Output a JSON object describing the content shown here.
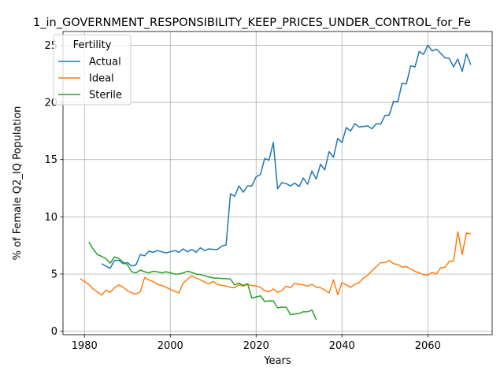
{
  "chart_data": {
    "type": "line",
    "title": "1_in_GOVERNMENT_RESPONSIBILITY_KEEP_PRICES_UNDER_CONTROL_for_Fe",
    "xlabel": "Years",
    "ylabel": "% of Female Q2_IQ Population",
    "xlim": [
      1975,
      2075
    ],
    "ylim": [
      -0.3,
      26.2
    ],
    "xticks": [
      1980,
      2000,
      2020,
      2040,
      2060
    ],
    "yticks": [
      0,
      5,
      10,
      15,
      20,
      25
    ],
    "grid": true,
    "legend": {
      "title": "Fertility",
      "placement": "top-left"
    },
    "series": [
      {
        "name": "Actual",
        "color": "#1f77b4",
        "x": [
          1984,
          1985,
          1986,
          1987,
          1988,
          1989,
          1990,
          1991,
          1992,
          1993,
          1994,
          1995,
          1996,
          1997,
          1998,
          1999,
          2000,
          2001,
          2002,
          2003,
          2004,
          2005,
          2006,
          2007,
          2008,
          2009,
          2010,
          2011,
          2012,
          2013,
          2014,
          2015,
          2016,
          2017,
          2018,
          2019,
          2020,
          2021,
          2022,
          2023,
          2024,
          2025,
          2026,
          2027,
          2028,
          2029,
          2030,
          2031,
          2032,
          2033,
          2034,
          2035,
          2036,
          2037,
          2038,
          2039,
          2040,
          2041,
          2042,
          2043,
          2044,
          2045,
          2046,
          2047,
          2048,
          2049,
          2050,
          2051,
          2052,
          2053,
          2054,
          2055,
          2056,
          2057,
          2058,
          2059,
          2060,
          2061,
          2062,
          2063,
          2064,
          2065,
          2066,
          2067,
          2068,
          2069,
          2070
        ],
        "values": [
          5.9,
          5.7,
          5.5,
          6.2,
          6.2,
          5.9,
          6.0,
          5.7,
          5.8,
          6.7,
          6.6,
          7.0,
          6.9,
          7.05,
          6.95,
          6.85,
          6.95,
          7.05,
          6.9,
          7.2,
          6.95,
          7.15,
          6.9,
          7.3,
          7.05,
          7.2,
          7.15,
          7.15,
          7.45,
          7.55,
          12.0,
          11.8,
          12.7,
          12.15,
          12.7,
          12.7,
          13.5,
          13.7,
          15.1,
          14.95,
          16.5,
          12.45,
          13.0,
          12.9,
          12.7,
          12.95,
          12.65,
          13.4,
          12.85,
          14.0,
          13.3,
          14.6,
          14.1,
          15.7,
          15.2,
          16.85,
          16.5,
          17.8,
          17.5,
          18.15,
          17.85,
          17.9,
          17.95,
          17.7,
          18.15,
          18.1,
          18.85,
          18.9,
          20.1,
          20.05,
          21.7,
          21.6,
          23.2,
          23.1,
          24.45,
          24.2,
          25.0,
          24.5,
          24.65,
          24.3,
          23.9,
          23.85,
          23.1,
          23.8,
          22.7,
          24.25,
          23.3
        ]
      },
      {
        "name": "Ideal",
        "color": "#ff7f0e",
        "x": [
          1979,
          1980,
          1981,
          1982,
          1983,
          1984,
          1985,
          1986,
          1987,
          1988,
          1989,
          1990,
          1991,
          1992,
          1993,
          1994,
          1995,
          1996,
          1997,
          1998,
          1999,
          2000,
          2001,
          2002,
          2003,
          2004,
          2005,
          2006,
          2007,
          2008,
          2009,
          2010,
          2011,
          2012,
          2013,
          2014,
          2015,
          2016,
          2017,
          2018,
          2019,
          2020,
          2021,
          2022,
          2023,
          2024,
          2025,
          2026,
          2027,
          2028,
          2029,
          2030,
          2031,
          2032,
          2033,
          2034,
          2035,
          2036,
          2037,
          2038,
          2039,
          2040,
          2041,
          2042,
          2043,
          2044,
          2045,
          2046,
          2047,
          2048,
          2049,
          2050,
          2051,
          2052,
          2053,
          2054,
          2055,
          2056,
          2057,
          2058,
          2059,
          2060,
          2061,
          2062,
          2063,
          2064,
          2065,
          2066,
          2067,
          2068,
          2069,
          2070
        ],
        "values": [
          4.6,
          4.35,
          4.1,
          3.7,
          3.45,
          3.15,
          3.6,
          3.4,
          3.8,
          4.05,
          3.85,
          3.55,
          3.35,
          3.25,
          3.45,
          4.7,
          4.5,
          4.35,
          4.1,
          4.0,
          3.85,
          3.65,
          3.5,
          3.35,
          4.2,
          4.55,
          4.85,
          4.65,
          4.5,
          4.3,
          4.15,
          4.35,
          4.1,
          4.0,
          3.95,
          3.85,
          3.8,
          4.05,
          3.95,
          4.1,
          4.0,
          3.95,
          3.85,
          3.55,
          3.45,
          3.7,
          3.4,
          3.55,
          3.95,
          3.8,
          4.2,
          4.1,
          4.05,
          3.95,
          4.1,
          3.85,
          3.8,
          3.6,
          3.35,
          4.5,
          3.2,
          4.25,
          4.05,
          3.85,
          4.1,
          4.25,
          4.65,
          4.9,
          5.3,
          5.65,
          6.0,
          6.0,
          6.2,
          5.9,
          5.85,
          5.6,
          5.65,
          5.45,
          5.25,
          5.1,
          4.95,
          4.9,
          5.15,
          5.0,
          5.55,
          5.6,
          6.1,
          6.15,
          8.7,
          6.7,
          8.6,
          8.5
        ]
      },
      {
        "name": "Sterile",
        "color": "#2ca02c",
        "x": [
          1981,
          1982,
          1983,
          1984,
          1985,
          1986,
          1987,
          1988,
          1989,
          1990,
          1991,
          1992,
          1993,
          1994,
          1995,
          1996,
          1997,
          1998,
          1999,
          2000,
          2001,
          2002,
          2003,
          2004,
          2005,
          2006,
          2007,
          2008,
          2009,
          2010,
          2011,
          2012,
          2013,
          2014,
          2015,
          2016,
          2017,
          2018,
          2019,
          2020,
          2021,
          2022,
          2023,
          2024,
          2025,
          2026,
          2027,
          2028,
          2029,
          2030,
          2031,
          2032,
          2033,
          2034
        ],
        "values": [
          7.8,
          7.2,
          6.7,
          6.55,
          6.35,
          5.95,
          6.5,
          6.35,
          6.05,
          5.8,
          5.2,
          5.1,
          5.35,
          5.2,
          5.1,
          5.25,
          5.2,
          5.1,
          5.2,
          5.1,
          5.0,
          5.0,
          5.1,
          5.25,
          5.15,
          5.0,
          4.95,
          4.85,
          4.75,
          4.65,
          4.65,
          4.6,
          4.6,
          4.55,
          4.05,
          4.2,
          4.0,
          4.15,
          2.9,
          3.0,
          3.1,
          2.6,
          2.65,
          2.65,
          2.05,
          2.1,
          2.1,
          1.45,
          1.5,
          1.55,
          1.7,
          1.7,
          1.85,
          1.0
        ]
      }
    ]
  }
}
